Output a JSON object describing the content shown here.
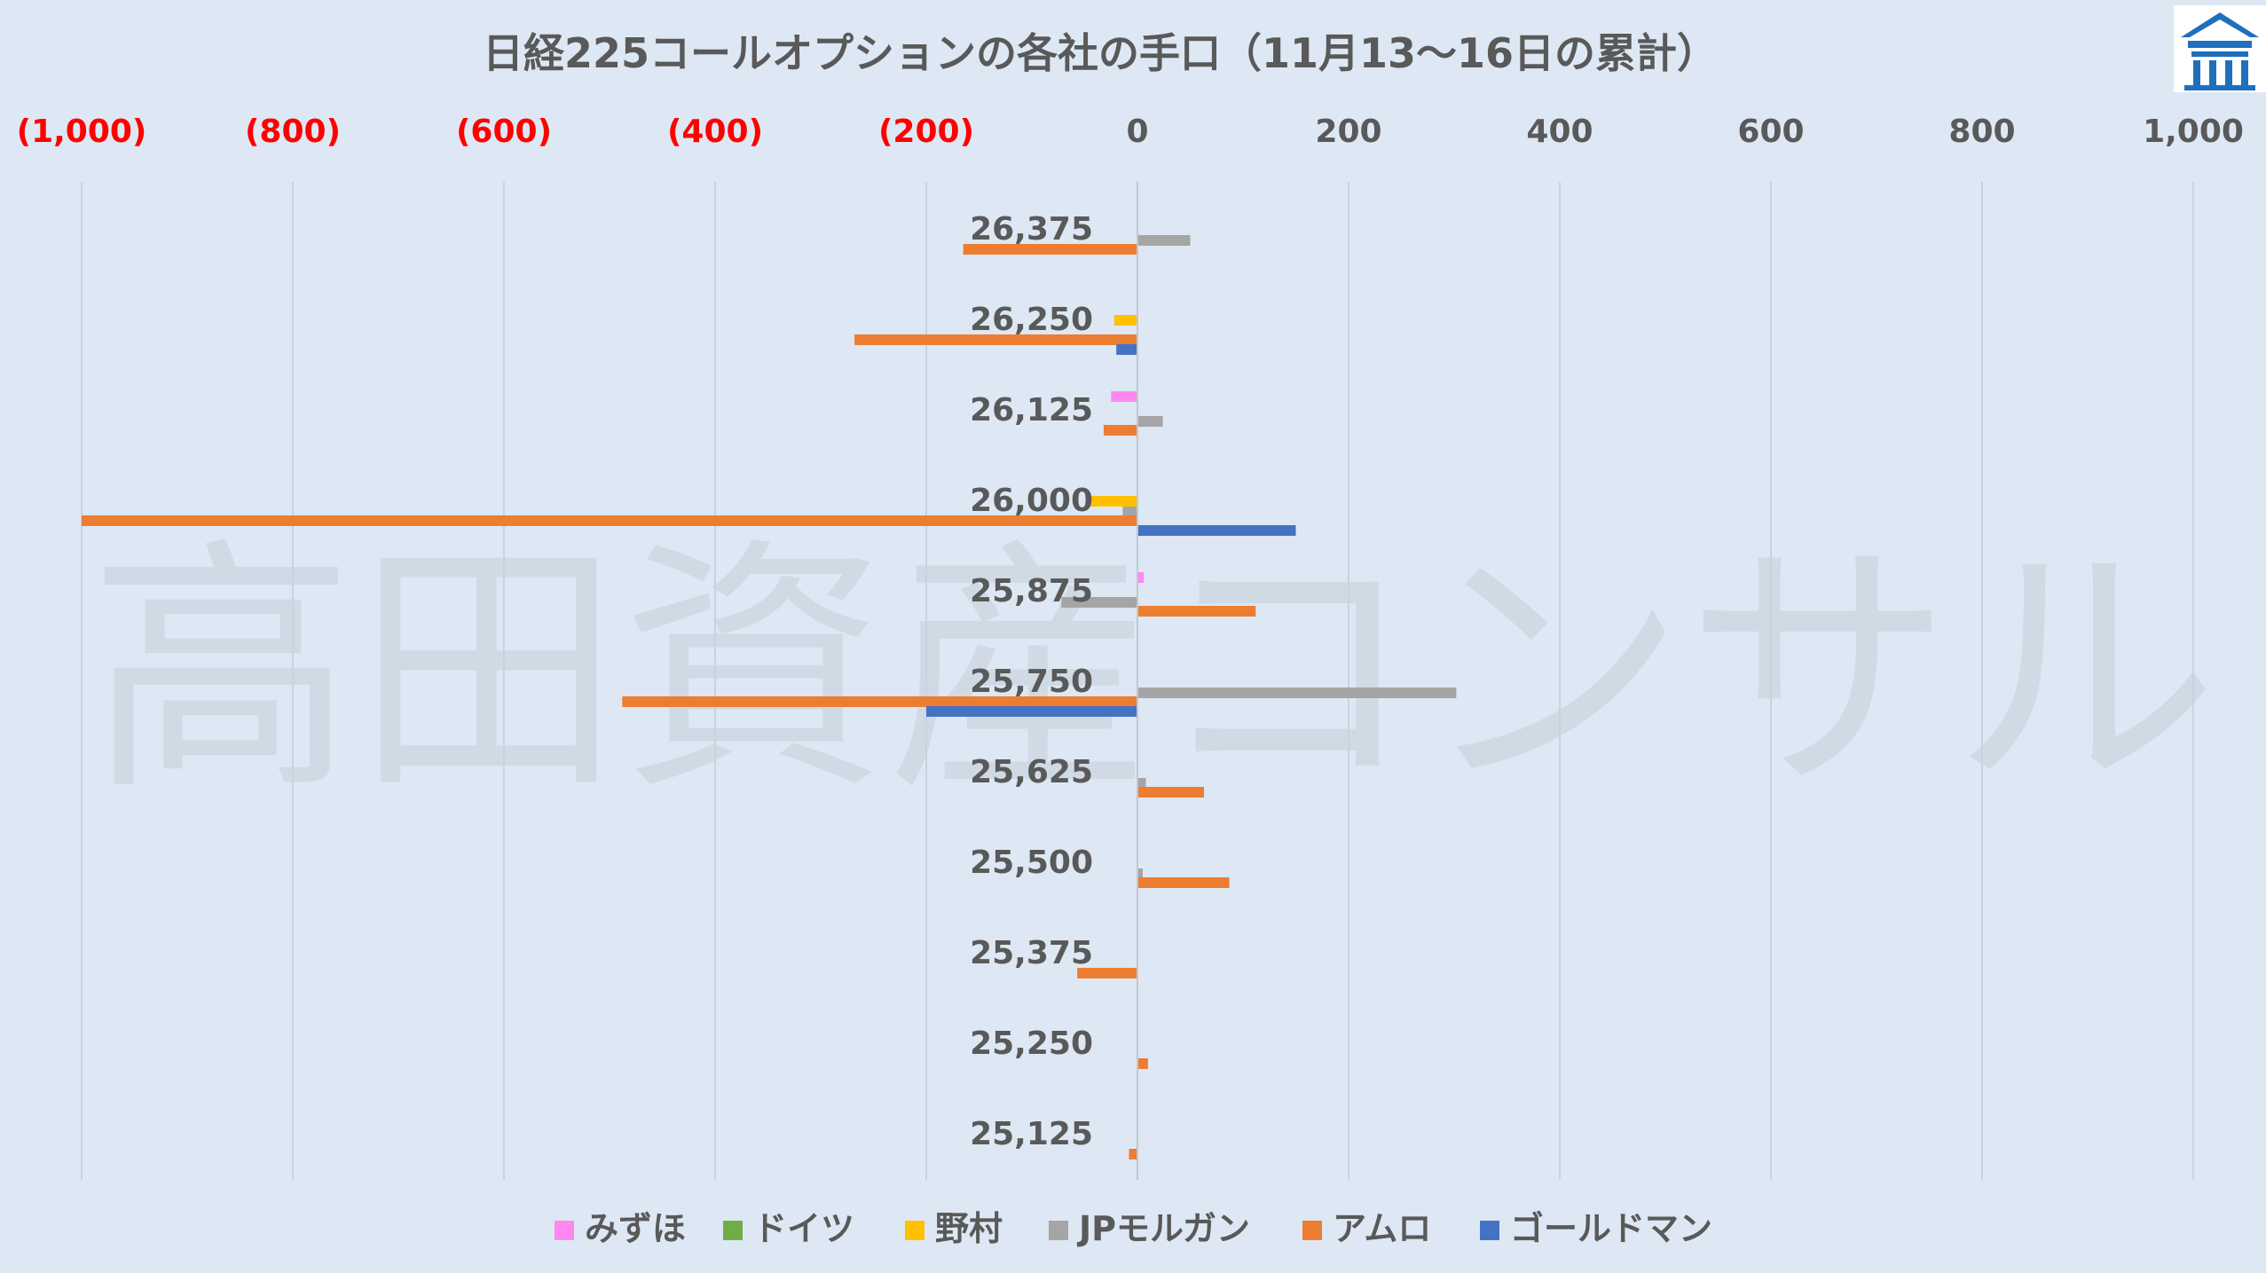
{
  "watermark": "高田資産コンサル",
  "chart_data": {
    "type": "bar",
    "orientation": "horizontal",
    "title": "日経225コールオプションの各社の手口（11月13〜16日の累計）",
    "xlim": [
      -1000,
      1000
    ],
    "x_ticks": [
      {
        "value": -1000,
        "label": "(1,000)",
        "color": "#ff0000"
      },
      {
        "value": -800,
        "label": "(800)",
        "color": "#ff0000"
      },
      {
        "value": -600,
        "label": "(600)",
        "color": "#ff0000"
      },
      {
        "value": -400,
        "label": "(400)",
        "color": "#ff0000"
      },
      {
        "value": -200,
        "label": "(200)",
        "color": "#ff0000"
      },
      {
        "value": 0,
        "label": "0",
        "color": "#595959"
      },
      {
        "value": 200,
        "label": "200",
        "color": "#595959"
      },
      {
        "value": 400,
        "label": "400",
        "color": "#595959"
      },
      {
        "value": 600,
        "label": "600",
        "color": "#595959"
      },
      {
        "value": 800,
        "label": "800",
        "color": "#595959"
      },
      {
        "value": 1000,
        "label": "1,000",
        "color": "#595959"
      }
    ],
    "grid": true,
    "legend_position": "bottom",
    "categories": [
      "26,375",
      "26,250",
      "26,125",
      "26,000",
      "25,875",
      "25,750",
      "25,625",
      "25,500",
      "25,375",
      "25,250",
      "25,125"
    ],
    "series": [
      {
        "name": "みずほ",
        "color": "#ff88f0",
        "values": [
          0,
          0,
          -25,
          0,
          6,
          0,
          0,
          0,
          0,
          0,
          0
        ]
      },
      {
        "name": "ドイツ",
        "color": "#70ad47",
        "values": [
          0,
          0,
          0,
          0,
          0,
          0,
          0,
          0,
          0,
          0,
          0
        ]
      },
      {
        "name": "野村",
        "color": "#ffc000",
        "values": [
          0,
          -22,
          0,
          -45,
          0,
          0,
          0,
          0,
          0,
          0,
          0
        ]
      },
      {
        "name": "JPモルガン",
        "color": "#a5a5a5",
        "values": [
          50,
          0,
          24,
          -14,
          -72,
          302,
          8,
          5,
          0,
          0,
          0
        ]
      },
      {
        "name": "アムロ",
        "color": "#ed7d31",
        "values": [
          -165,
          -268,
          -32,
          -1000,
          112,
          -488,
          63,
          87,
          -57,
          10,
          -8
        ]
      },
      {
        "name": "ゴールドマン",
        "color": "#4472c4",
        "values": [
          0,
          -20,
          0,
          150,
          0,
          -200,
          0,
          0,
          0,
          0,
          0
        ]
      }
    ]
  }
}
